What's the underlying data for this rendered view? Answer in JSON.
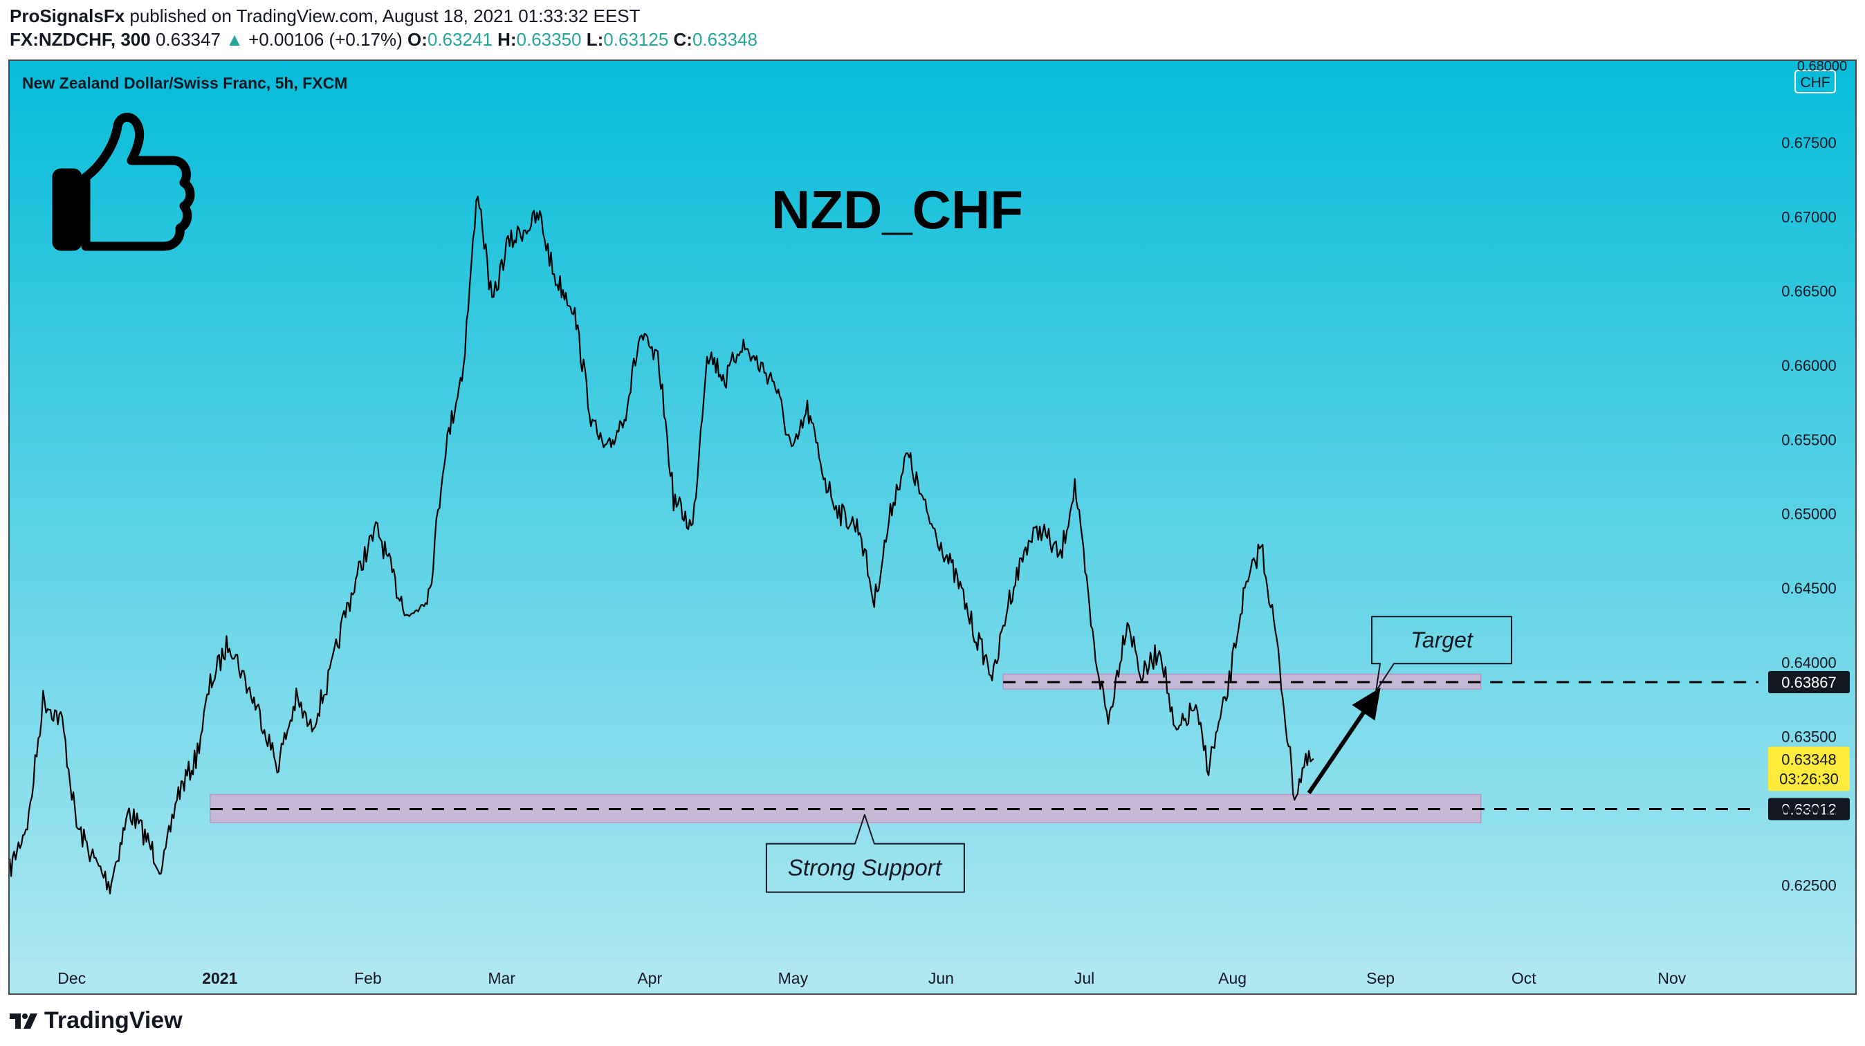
{
  "header": {
    "author": "ProSignalsFx",
    "published_text": "published on TradingView.com, August 18, 2021 01:33:32 EEST",
    "symbol": "FX:NZDCHF, 300",
    "last": "0.63347",
    "change": "+0.00106 (+0.17%)",
    "open_label": "O:",
    "open": "0.63241",
    "high_label": "H:",
    "high": "0.63350",
    "low_label": "L:",
    "low": "0.63125",
    "close_label": "C:",
    "close": "0.63348"
  },
  "chart": {
    "instrument": "New Zealand Dollar/Swiss Franc, 5h, FXCM",
    "title": "NZD_CHF",
    "currency_badge": "CHF",
    "price_top_cut": "0.68000",
    "last_price_label": "0.63348",
    "countdown_label": "03:26:30",
    "target_label": "Target",
    "support_label": "Strong Support",
    "resistance_price_label": "0.63867",
    "support_price_label": "0.63012"
  },
  "footer": {
    "brand": "TradingView"
  },
  "colors": {
    "bg_top": "#06bcd9",
    "bg_bottom": "#b0e8f2",
    "zone": "#cdb4d3",
    "zone_border": "#b894c4",
    "last_price_bg": "#ffeb3b",
    "candles": "#000000"
  },
  "chart_data": {
    "type": "line",
    "x_axis_labels": [
      "Dec",
      "2021",
      "Feb",
      "Mar",
      "Apr",
      "May",
      "Jun",
      "Jul",
      "Aug",
      "Sep",
      "Oct",
      "Nov"
    ],
    "y_ticks": [
      "0.62500",
      "0.63000",
      "0.63500",
      "0.64000",
      "0.64500",
      "0.65000",
      "0.65500",
      "0.66000",
      "0.66500",
      "0.67000",
      "0.67500"
    ],
    "ylim": [
      0.6205,
      0.6805
    ],
    "xlim": [
      "2020-11-18",
      "2021-11-20"
    ],
    "series": [
      {
        "x": [
          "2020-11-18",
          "2020-11-22",
          "2020-11-25",
          "2020-11-29",
          "2020-12-02",
          "2020-12-06",
          "2020-12-09",
          "2020-12-13",
          "2020-12-16",
          "2020-12-20",
          "2020-12-23",
          "2020-12-27",
          "2020-12-30",
          "2021-01-03",
          "2021-01-06",
          "2021-01-10",
          "2021-01-13",
          "2021-01-17",
          "2021-01-20",
          "2021-01-24",
          "2021-01-27",
          "2021-01-31",
          "2021-02-03",
          "2021-02-07",
          "2021-02-10",
          "2021-02-14",
          "2021-02-17",
          "2021-02-21",
          "2021-02-24",
          "2021-02-27",
          "2021-03-02",
          "2021-03-05",
          "2021-03-09",
          "2021-03-12",
          "2021-03-16",
          "2021-03-20",
          "2021-03-23",
          "2021-03-27",
          "2021-03-30",
          "2021-04-03",
          "2021-04-06",
          "2021-04-10",
          "2021-04-13",
          "2021-04-17",
          "2021-04-20",
          "2021-04-24",
          "2021-04-27",
          "2021-05-01",
          "2021-05-04",
          "2021-05-08",
          "2021-05-11",
          "2021-05-15",
          "2021-05-18",
          "2021-05-22",
          "2021-05-25",
          "2021-05-29",
          "2021-06-01",
          "2021-06-05",
          "2021-06-08",
          "2021-06-12",
          "2021-06-15",
          "2021-06-19",
          "2021-06-22",
          "2021-06-26",
          "2021-06-29",
          "2021-07-03",
          "2021-07-06",
          "2021-07-10",
          "2021-07-13",
          "2021-07-17",
          "2021-07-20",
          "2021-07-24",
          "2021-07-27",
          "2021-07-31",
          "2021-08-03",
          "2021-08-07",
          "2021-08-10",
          "2021-08-14",
          "2021-08-16",
          "2021-08-18"
        ],
        "values": [
          0.626,
          0.6295,
          0.6375,
          0.636,
          0.629,
          0.6265,
          0.625,
          0.63,
          0.6285,
          0.626,
          0.631,
          0.6335,
          0.6385,
          0.6415,
          0.639,
          0.636,
          0.633,
          0.6375,
          0.6355,
          0.639,
          0.643,
          0.647,
          0.649,
          0.645,
          0.643,
          0.645,
          0.654,
          0.66,
          0.672,
          0.664,
          0.668,
          0.669,
          0.67,
          0.666,
          0.664,
          0.656,
          0.654,
          0.657,
          0.662,
          0.66,
          0.651,
          0.649,
          0.661,
          0.659,
          0.6615,
          0.66,
          0.659,
          0.654,
          0.657,
          0.652,
          0.65,
          0.649,
          0.644,
          0.651,
          0.654,
          0.65,
          0.648,
          0.645,
          0.642,
          0.639,
          0.644,
          0.648,
          0.649,
          0.647,
          0.652,
          0.641,
          0.636,
          0.643,
          0.639,
          0.641,
          0.635,
          0.637,
          0.633,
          0.638,
          0.644,
          0.648,
          0.642,
          0.631,
          0.633,
          0.6335
        ]
      }
    ],
    "levels": [
      {
        "label": "0.63867",
        "value": 0.63867,
        "zone": [
          0.6382,
          0.6392
        ],
        "zone_from": "2021-06-14",
        "zone_to": "2021-09-22"
      },
      {
        "label": "0.63012",
        "value": 0.63012,
        "zone": [
          0.6292,
          0.6311
        ],
        "zone_from": "2020-12-30",
        "zone_to": "2021-09-22"
      }
    ],
    "arrow": {
      "from": {
        "x": "2021-08-17",
        "y": 0.6312
      },
      "to": {
        "x": "2021-09-01",
        "y": 0.6383
      }
    },
    "grid": false
  }
}
